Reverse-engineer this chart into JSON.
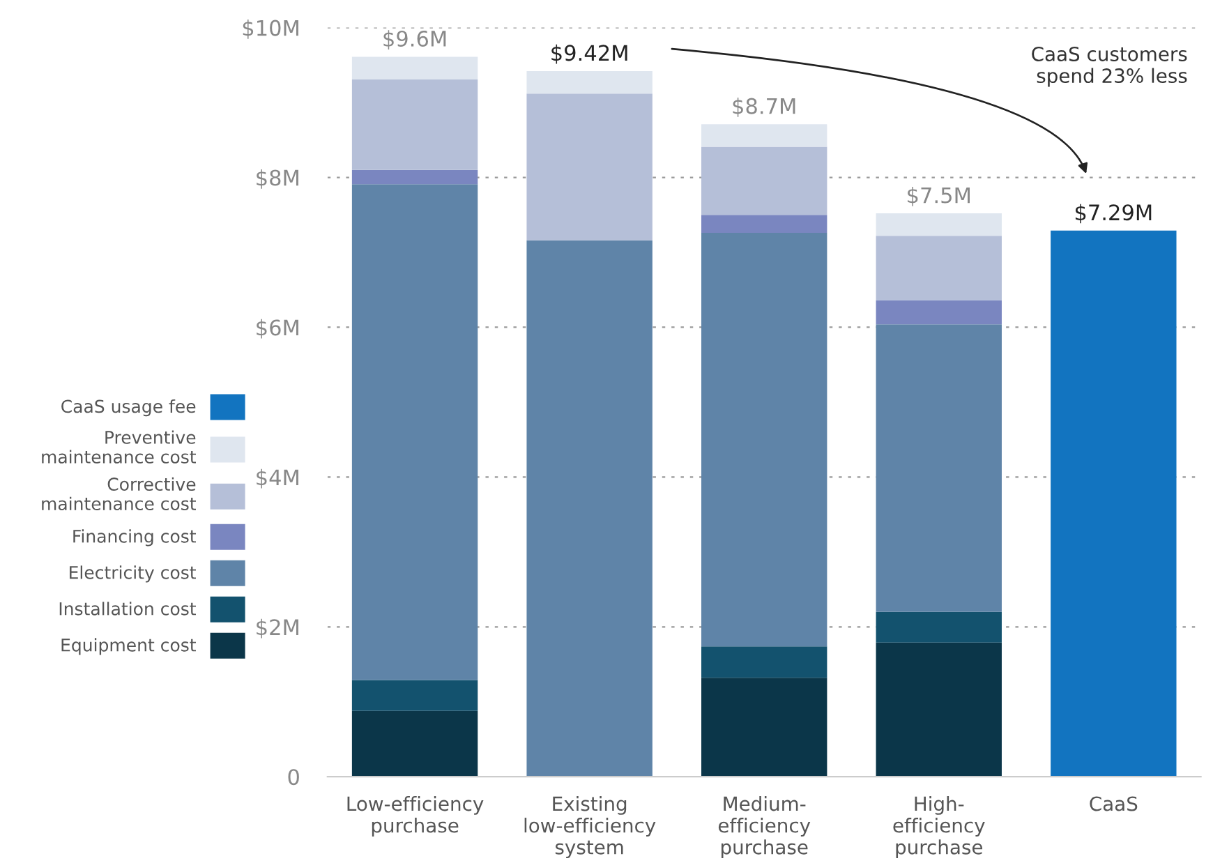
{
  "chart_data": {
    "type": "bar",
    "stacked": true,
    "categories": [
      "Low-efficiency\npurchase",
      "Existing\nlow-efficiency\nsystem",
      "Medium-\nefficiency\npurchase",
      "High-\nefficiency\npurchase",
      "CaaS"
    ],
    "series": [
      {
        "name": "Equipment cost",
        "color": "#0b3649",
        "values": [
          0.88,
          null,
          1.32,
          1.79,
          null
        ]
      },
      {
        "name": "Installation cost",
        "color": "#13526e",
        "values": [
          0.41,
          null,
          0.42,
          0.41,
          null
        ]
      },
      {
        "name": "Electricity cost",
        "color": "#5f84a8",
        "values": [
          6.62,
          7.16,
          5.52,
          3.84,
          null
        ]
      },
      {
        "name": "Financing cost",
        "color": "#7a86c0",
        "values": [
          0.19,
          null,
          0.24,
          0.32,
          null
        ]
      },
      {
        "name": "Corrective\nmaintenance cost",
        "color": "#b5bfd8",
        "values": [
          1.21,
          1.96,
          0.91,
          0.86,
          null
        ]
      },
      {
        "name": "Preventive\nmaintenance cost",
        "color": "#dfe6ef",
        "values": [
          0.3,
          0.3,
          0.3,
          0.3,
          null
        ]
      },
      {
        "name": "CaaS usage fee",
        "color": "#1274c0",
        "values": [
          null,
          null,
          null,
          null,
          7.29
        ]
      }
    ],
    "totals": [
      "$9.6M",
      "$9.42M",
      "$8.7M",
      "$7.5M",
      "$7.29M"
    ],
    "ylim": [
      0,
      10
    ],
    "yticks": [
      0,
      {
        "value": 2,
        "label": "$2M"
      },
      {
        "value": 4,
        "label": "$4M"
      },
      {
        "value": 6,
        "label": "$6M"
      },
      {
        "value": 8,
        "label": "$8M"
      },
      {
        "value": 10,
        "label": "$10M"
      }
    ],
    "grid": "y",
    "legend": "left",
    "annotations": [
      "CaaS customers\nspend 23% less"
    ]
  }
}
